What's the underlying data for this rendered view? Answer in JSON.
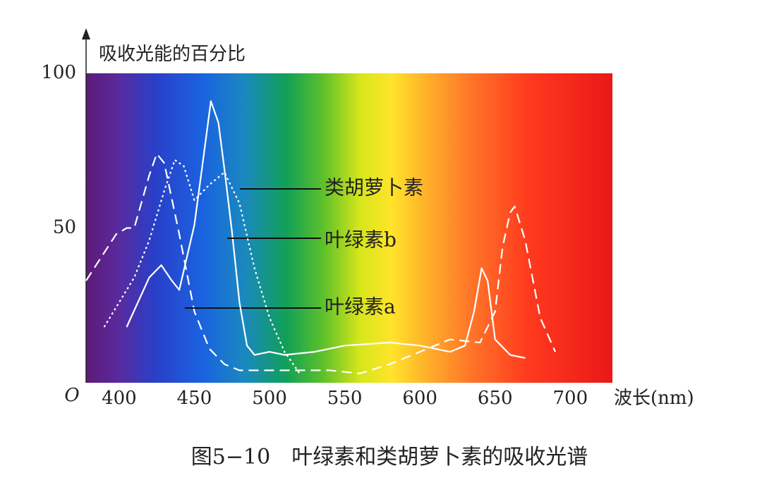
{
  "chart_data": {
    "type": "line",
    "y_label": "吸收光能的百分比",
    "x_label": "波长(nm)",
    "origin_label": "O",
    "caption": "图5−10　叶绿素和类胡萝卜素的吸收光谱",
    "xlim": [
      378,
      728
    ],
    "ylim": [
      0,
      100
    ],
    "xticks": [
      400,
      450,
      500,
      550,
      600,
      650,
      700
    ],
    "yticks": [
      50,
      100
    ],
    "series": [
      {
        "name": "叶绿素a",
        "color": "#ffffff",
        "dash": "dashed",
        "x": [
          378,
          398,
          405,
          410,
          420,
          425,
          430,
          440,
          450,
          460,
          470,
          480,
          500,
          520,
          540,
          560,
          580,
          600,
          620,
          640,
          650,
          655,
          660,
          663,
          670,
          680,
          690
        ],
        "values": [
          33,
          48,
          50,
          50,
          67,
          74,
          71,
          48,
          23,
          11,
          6,
          4,
          4,
          4,
          4,
          3,
          6,
          10,
          14,
          13,
          23,
          44,
          55,
          57,
          46,
          21,
          10
        ]
      },
      {
        "name": "叶绿素b",
        "color": "#ffffff",
        "dash": "solid",
        "x": [
          405,
          420,
          428,
          435,
          440,
          450,
          455,
          461,
          466,
          470,
          475,
          480,
          485,
          490,
          500,
          510,
          530,
          550,
          580,
          600,
          620,
          630,
          636,
          641,
          645,
          650,
          660,
          670
        ],
        "values": [
          18,
          34,
          38,
          33,
          30,
          51,
          69,
          91,
          84,
          69,
          49,
          26,
          12,
          9,
          10,
          9,
          10,
          12,
          13,
          12,
          10,
          12,
          23,
          37,
          33,
          14,
          9,
          8
        ]
      },
      {
        "name": "类胡萝卜素",
        "color": "#ffffff",
        "dash": "dotted",
        "x": [
          390,
          400,
          410,
          420,
          430,
          437,
          443,
          450,
          460,
          470,
          480,
          490,
          500,
          510,
          520
        ],
        "values": [
          18,
          26,
          34,
          46,
          62,
          72,
          70,
          59,
          64,
          68,
          58,
          37,
          21,
          10,
          3
        ]
      }
    ]
  }
}
